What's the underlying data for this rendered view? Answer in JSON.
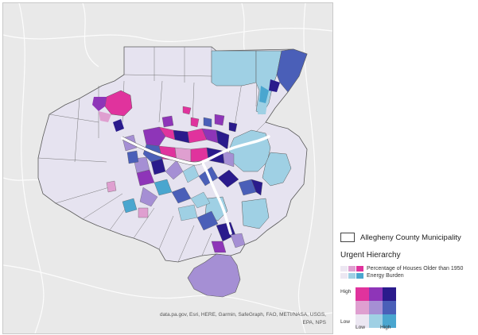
{
  "map": {
    "attribution": "data.pa.gov, Esri, HERE, Garmin, SafeGraph, FAO, METI/NASA, USGS, EPA, NPS"
  },
  "legend": {
    "municipality_label": "Allegheny County Municipality",
    "hierarchy_title": "Urgent Hierarchy",
    "houses_label": "Percentage of Houses Older than 1950",
    "energy_label": "Energy Burden",
    "houses_ramp": [
      "#ece7f2",
      "#df9fd0",
      "#e0339d"
    ],
    "energy_ramp": [
      "#ece7f2",
      "#9fd0e4",
      "#4aa6cf"
    ],
    "grid_colors": [
      [
        "#e0339d",
        "#8e35b8",
        "#2a1b8c"
      ],
      [
        "#df9fd0",
        "#a58fd4",
        "#4a5fb8"
      ],
      [
        "#ece7f2",
        "#9fd0e4",
        "#4aa6cf"
      ]
    ],
    "y_high": "High",
    "y_low": "Low",
    "x_low": "Low",
    "x_high": "High"
  },
  "colors": {
    "basemap": "#e9e9e9",
    "county_base": "#e6e3f0",
    "boundary": "#5a5a5a",
    "river": "#ffffff"
  }
}
